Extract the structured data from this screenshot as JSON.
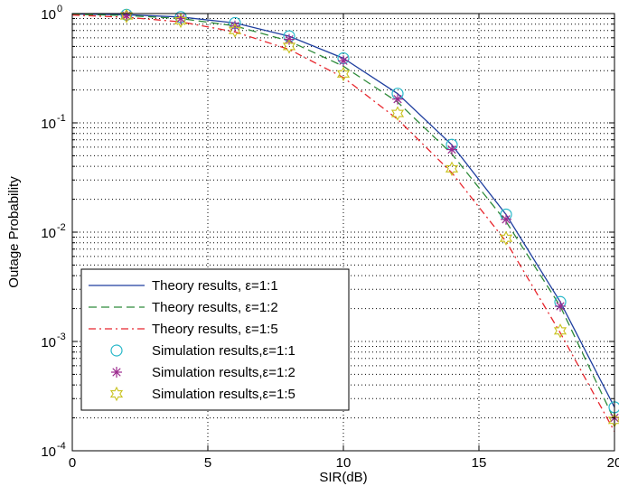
{
  "chart_data": {
    "type": "line",
    "xlabel": "SIR(dB)",
    "ylabel": "Outage Probability",
    "xlim": [
      0,
      20
    ],
    "ylim": [
      0.0001,
      1
    ],
    "yscale": "log",
    "grid": true,
    "grid_style": "dotted",
    "legend_position": "bottom-left",
    "x_ticks": [
      0,
      5,
      10,
      15,
      20
    ],
    "x_tick_labels": [
      "0",
      "5",
      "10",
      "15",
      "20"
    ],
    "y_ticks": [
      0.0001,
      0.001,
      0.01,
      0.1,
      1
    ],
    "y_tick_labels": [
      {
        "base": "10",
        "exp": "-4"
      },
      {
        "base": "10",
        "exp": "-3"
      },
      {
        "base": "10",
        "exp": "-2"
      },
      {
        "base": "10",
        "exp": "-1"
      },
      {
        "base": "10",
        "exp": "0"
      }
    ],
    "series": [
      {
        "name": "Theory results, ε=1:1",
        "kind": "line",
        "color": "#1f3f9f",
        "dash": "solid",
        "x": [
          0,
          2,
          4,
          6,
          8,
          10,
          12,
          14,
          16,
          18,
          20
        ],
        "y": [
          0.99,
          0.975,
          0.93,
          0.82,
          0.62,
          0.39,
          0.185,
          0.063,
          0.0145,
          0.0023,
          0.00025
        ]
      },
      {
        "name": "Theory results, ε=1:2",
        "kind": "line",
        "color": "#2e8b3a",
        "dash": "dashed",
        "x": [
          0,
          2,
          4,
          6,
          8,
          10,
          12,
          14,
          16,
          18,
          20
        ],
        "y": [
          0.985,
          0.96,
          0.9,
          0.77,
          0.56,
          0.33,
          0.155,
          0.052,
          0.0125,
          0.0021,
          0.00019
        ]
      },
      {
        "name": "Theory results, ε=1:5",
        "kind": "line",
        "color": "#e8262d",
        "dash": "dashdot",
        "x": [
          0,
          2,
          4,
          6,
          8,
          10,
          12,
          14,
          16,
          18,
          20
        ],
        "y": [
          0.97,
          0.925,
          0.84,
          0.68,
          0.47,
          0.26,
          0.108,
          0.035,
          0.0082,
          0.0012,
          0.00015
        ]
      },
      {
        "name": "Simulation results,ε=1:1",
        "kind": "marker",
        "marker": "circle",
        "color": "#29b8c9",
        "x": [
          2,
          4,
          6,
          8,
          10,
          12,
          14,
          16,
          18,
          20
        ],
        "y": [
          0.975,
          0.93,
          0.82,
          0.62,
          0.39,
          0.185,
          0.063,
          0.0145,
          0.0023,
          0.00025
        ]
      },
      {
        "name": "Simulation results,ε=1:2",
        "kind": "marker",
        "marker": "star",
        "color": "#9c2a8e",
        "x": [
          2,
          4,
          6,
          8,
          10,
          12,
          14,
          16,
          18,
          20
        ],
        "y": [
          0.96,
          0.9,
          0.77,
          0.58,
          0.37,
          0.165,
          0.057,
          0.0131,
          0.0021,
          0.0002
        ]
      },
      {
        "name": "Simulation results,ε=1:5",
        "kind": "marker",
        "marker": "hexagram",
        "color": "#c8c21e",
        "x": [
          2,
          4,
          6,
          8,
          10,
          12,
          14,
          16,
          18,
          20
        ],
        "y": [
          0.95,
          0.86,
          0.7,
          0.5,
          0.28,
          0.122,
          0.038,
          0.0088,
          0.00125,
          0.00019
        ]
      }
    ]
  }
}
